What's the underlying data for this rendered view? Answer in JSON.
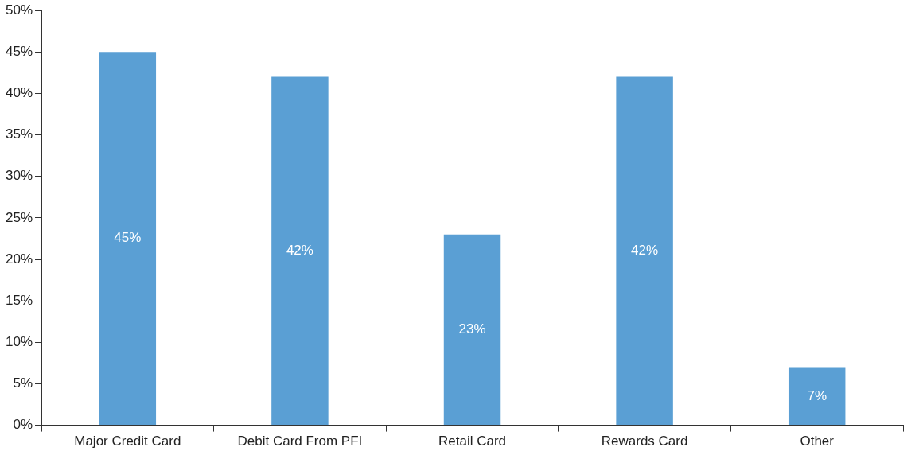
{
  "chart_data": {
    "type": "bar",
    "categories": [
      "Major Credit Card",
      "Debit Card From PFI",
      "Retail Card",
      "Rewards Card",
      "Other"
    ],
    "values": [
      45,
      42,
      23,
      42,
      7
    ],
    "value_labels": [
      "45%",
      "42%",
      "23%",
      "42%",
      "7%"
    ],
    "color": "#5a9fd4",
    "grid": false,
    "legend": false,
    "ylim": [
      0,
      50
    ],
    "yticks": [
      {
        "value": 0,
        "label": "0%"
      },
      {
        "value": 5,
        "label": "5%"
      },
      {
        "value": 10,
        "label": "10%"
      },
      {
        "value": 15,
        "label": "15%"
      },
      {
        "value": 20,
        "label": "20%"
      },
      {
        "value": 25,
        "label": "25%"
      },
      {
        "value": 30,
        "label": "30%"
      },
      {
        "value": 35,
        "label": "35%"
      },
      {
        "value": 40,
        "label": "40%"
      },
      {
        "value": 45,
        "label": "45%"
      },
      {
        "value": 50,
        "label": "50%"
      }
    ]
  }
}
